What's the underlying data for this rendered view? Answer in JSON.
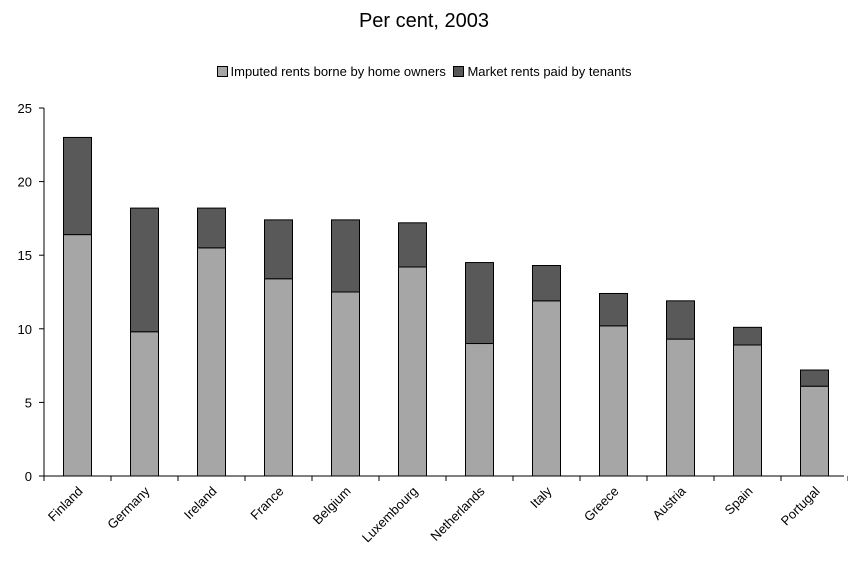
{
  "chart_data": {
    "type": "bar",
    "stacked": true,
    "title": "Per cent, 2003",
    "xlabel": "",
    "ylabel": "",
    "categories": [
      "Finland",
      "Germany",
      "Ireland",
      "France",
      "Belgium",
      "Luxembourg",
      "Netherlands",
      "Italy",
      "Greece",
      "Austria",
      "Spain",
      "Portugal"
    ],
    "series": [
      {
        "name": "Imputed rents borne by home owners",
        "color": "#a6a6a6",
        "values": [
          16.4,
          9.8,
          15.5,
          13.4,
          12.5,
          14.2,
          9.0,
          11.9,
          10.2,
          9.3,
          8.9,
          6.1
        ]
      },
      {
        "name": "Market rents paid by tenants",
        "color": "#595959",
        "values": [
          6.6,
          8.4,
          2.7,
          4.0,
          4.9,
          3.0,
          5.5,
          2.4,
          2.2,
          2.6,
          1.2,
          1.1
        ]
      }
    ],
    "ylim": [
      0,
      25
    ],
    "yticks": [
      0,
      5,
      10,
      15,
      20,
      25
    ],
    "grid": false,
    "legend_position": "top"
  }
}
